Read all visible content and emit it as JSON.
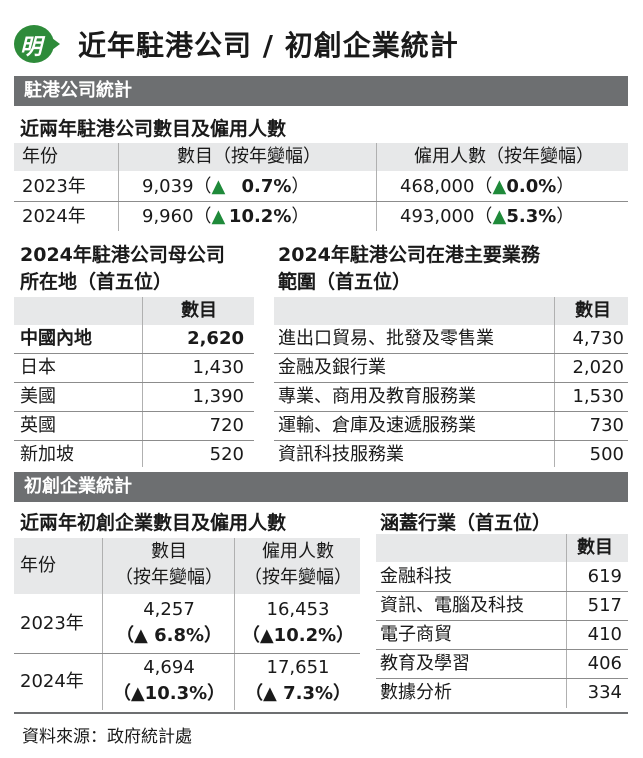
{
  "header": {
    "logo_char": "明",
    "title": "近年駐港公司 / 初創企業統計"
  },
  "section1": {
    "bar_title": "駐港公司統計",
    "employment": {
      "subtitle": "近兩年駐港公司數目及僱用人數",
      "col_year": "年份",
      "col_count": "數目（按年變幅）",
      "col_staff": "僱用人數（按年變幅）",
      "rows": [
        {
          "year": "2023年",
          "count": "9,039（",
          "count_arrow": "▲",
          "count_change": "0.7%",
          "count_close": "）",
          "staff": "468,000（",
          "staff_arrow": "▲",
          "staff_change": "0.0%",
          "staff_close": "）"
        },
        {
          "year": "2024年",
          "count": "9,960（",
          "count_arrow": "▲",
          "count_change": "10.2%",
          "count_close": "）",
          "staff": "493,000（",
          "staff_arrow": "▲",
          "staff_change": "5.3%",
          "staff_close": "）"
        }
      ]
    },
    "parent_location": {
      "subtitle_line1": "2024年駐港公司母公司",
      "subtitle_line2": "所在地（首五位）",
      "col_count": "數目",
      "rows": [
        {
          "place": "中國內地",
          "count": "2,620"
        },
        {
          "place": "日本",
          "count": "1,430"
        },
        {
          "place": "美國",
          "count": "1,390"
        },
        {
          "place": "英國",
          "count": "720"
        },
        {
          "place": "新加坡",
          "count": "520"
        }
      ]
    },
    "business_scope": {
      "subtitle_line1": "2024年駐港公司在港主要業務",
      "subtitle_line2": "範圍（首五位）",
      "col_count": "數目",
      "rows": [
        {
          "scope": "進出口貿易、批發及零售業",
          "count": "4,730"
        },
        {
          "scope": "金融及銀行業",
          "count": "2,020"
        },
        {
          "scope": "專業、商用及教育服務業",
          "count": "1,530"
        },
        {
          "scope": "運輸、倉庫及速遞服務業",
          "count": "730"
        },
        {
          "scope": "資訊科技服務業",
          "count": "500"
        }
      ]
    }
  },
  "section2": {
    "bar_title": "初創企業統計",
    "employment": {
      "subtitle": "近兩年初創企業數目及僱用人數",
      "col_year": "年份",
      "col_count_line1": "數目",
      "col_count_line2": "（按年變幅）",
      "col_staff_line1": "僱用人數",
      "col_staff_line2": "（按年變幅）",
      "rows": [
        {
          "year": "2023年",
          "count": "4,257",
          "count_change": "（▲ 6.8%）",
          "staff": "16,453",
          "staff_change": "（▲10.2%）"
        },
        {
          "year": "2024年",
          "count": "4,694",
          "count_change": "（▲10.3%）",
          "staff": "17,651",
          "staff_change": "（▲ 7.3%）"
        }
      ]
    },
    "industries": {
      "subtitle": "涵蓋行業（首五位）",
      "col_count": "數目",
      "rows": [
        {
          "industry": "金融科技",
          "count": "619"
        },
        {
          "industry": "資訊、電腦及科技",
          "count": "517"
        },
        {
          "industry": "電子商貿",
          "count": "410"
        },
        {
          "industry": "教育及學習",
          "count": "406"
        },
        {
          "industry": "數據分析",
          "count": "334"
        }
      ]
    }
  },
  "source": "資料來源：政府統計處",
  "colors": {
    "bar": "#6d6f71",
    "shade": "#e7e8e9",
    "up_arrow": "#1f8a3a",
    "logo": "#2e8b3a"
  }
}
